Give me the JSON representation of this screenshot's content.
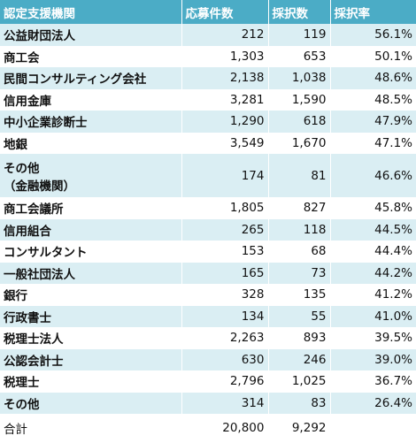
{
  "table": {
    "header": [
      "認定支援機関",
      "応募件数",
      "採択数",
      "採択率"
    ],
    "rows": [
      [
        "公益財団法人",
        "212",
        "119",
        "56.1%"
      ],
      [
        "商工会",
        "1,303",
        "653",
        "50.1%"
      ],
      [
        "民間コンサルティング会社",
        "2,138",
        "1,038",
        "48.6%"
      ],
      [
        "信用金庫",
        "3,281",
        "1,590",
        "48.5%"
      ],
      [
        "中小企業診断士",
        "1,290",
        "618",
        "47.9%"
      ],
      [
        "地銀",
        "3,549",
        "1,670",
        "47.1%"
      ],
      [
        "その他\n（金融機関）",
        "174",
        "81",
        "46.6%"
      ],
      [
        "商工会議所",
        "1,805",
        "827",
        "45.8%"
      ],
      [
        "信用組合",
        "265",
        "118",
        "44.5%"
      ],
      [
        "コンサルタント",
        "153",
        "68",
        "44.4%"
      ],
      [
        "一般社団法人",
        "165",
        "73",
        "44.2%"
      ],
      [
        "銀行",
        "328",
        "135",
        "41.2%"
      ],
      [
        "行政書士",
        "134",
        "55",
        "41.0%"
      ],
      [
        "税理士法人",
        "2,263",
        "893",
        "39.5%"
      ],
      [
        "公認会計士",
        "630",
        "246",
        "39.0%"
      ],
      [
        "税理士",
        "2,796",
        "1,025",
        "36.7%"
      ],
      [
        "その他",
        "314",
        "83",
        "26.4%"
      ]
    ],
    "total": [
      "合計",
      "20,800",
      "9,292"
    ]
  }
}
